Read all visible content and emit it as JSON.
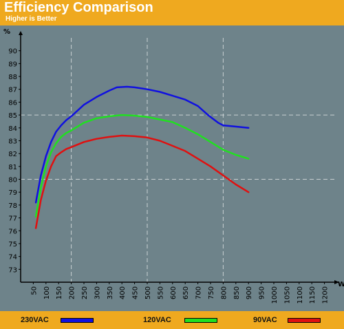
{
  "title": "Efficiency Comparison",
  "subtitle": "Higher is Better",
  "chart_data": {
    "type": "line",
    "ylabel": "%",
    "xlabel": "W",
    "xlim": [
      0,
      1250
    ],
    "ylim": [
      72,
      91
    ],
    "x_ticks": [
      50,
      100,
      150,
      200,
      250,
      300,
      350,
      400,
      450,
      500,
      550,
      600,
      650,
      700,
      750,
      800,
      850,
      900,
      950,
      1000,
      1050,
      1100,
      1150,
      1200
    ],
    "y_ticks": [
      73,
      74,
      75,
      76,
      77,
      78,
      79,
      80,
      81,
      82,
      83,
      84,
      85,
      86,
      87,
      88,
      89,
      90
    ],
    "grid": {
      "dashed_y": [
        80,
        85
      ],
      "dashed_x": [
        200,
        500,
        800
      ]
    },
    "series": [
      {
        "name": "230VAC",
        "color": "#1010e0",
        "x": [
          60,
          80,
          100,
          120,
          140,
          160,
          180,
          200,
          250,
          300,
          350,
          380,
          420,
          450,
          500,
          550,
          600,
          650,
          700,
          740,
          780,
          800,
          900
        ],
        "y": [
          78.2,
          80.3,
          81.8,
          82.9,
          83.7,
          84.2,
          84.6,
          84.9,
          85.8,
          86.4,
          86.9,
          87.15,
          87.2,
          87.15,
          87.0,
          86.8,
          86.5,
          86.2,
          85.7,
          85.0,
          84.4,
          84.2,
          84.0
        ]
      },
      {
        "name": "120VAC",
        "color": "#20e020",
        "x": [
          60,
          80,
          100,
          120,
          140,
          160,
          180,
          200,
          250,
          300,
          350,
          400,
          450,
          500,
          550,
          600,
          650,
          700,
          750,
          800,
          850,
          900
        ],
        "y": [
          77.1,
          79.4,
          81.0,
          82.1,
          82.8,
          83.3,
          83.6,
          83.8,
          84.4,
          84.75,
          84.9,
          85.0,
          84.95,
          84.85,
          84.65,
          84.45,
          84.0,
          83.5,
          82.9,
          82.3,
          81.9,
          81.6
        ]
      },
      {
        "name": "90VAC",
        "color": "#e01010",
        "x": [
          60,
          80,
          100,
          120,
          140,
          160,
          180,
          200,
          250,
          300,
          350,
          400,
          450,
          500,
          550,
          600,
          650,
          700,
          750,
          800,
          850,
          900
        ],
        "y": [
          76.2,
          78.4,
          79.9,
          81.0,
          81.8,
          82.1,
          82.35,
          82.5,
          82.9,
          83.15,
          83.3,
          83.4,
          83.35,
          83.25,
          83.0,
          82.6,
          82.2,
          81.6,
          81.0,
          80.3,
          79.6,
          79.0
        ]
      }
    ]
  }
}
